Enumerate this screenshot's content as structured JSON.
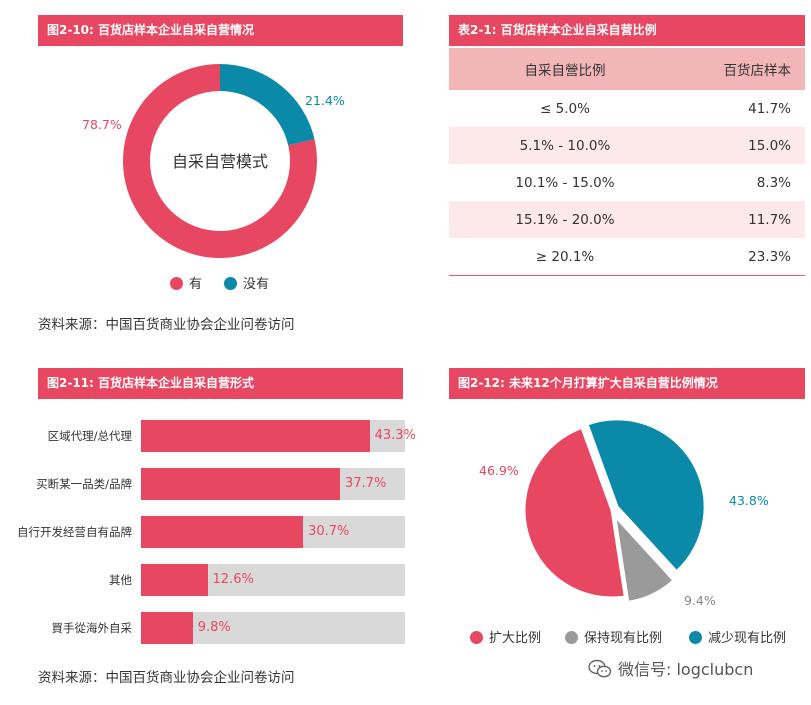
{
  "panel_1": {
    "title": "图2-10: 百货店样本企业自采自营情况",
    "center_label": "自采自营模式",
    "source": "资料来源：中国百货商业协会企业问卷访问"
  },
  "panel_2": {
    "title": "表2-1: 百货店样本企业自采自营比例",
    "columns": [
      "自采自營比例",
      "百货店样本"
    ],
    "rows": [
      [
        "≤ 5.0%",
        "41.7%"
      ],
      [
        "5.1% - 10.0%",
        "15.0%"
      ],
      [
        "10.1% - 15.0%",
        "8.3%"
      ],
      [
        "15.1% - 20.0%",
        "11.7%"
      ],
      [
        "≥ 20.1%",
        "23.3%"
      ]
    ]
  },
  "panel_3": {
    "title": "图2-11: 百货店样本企业自采自营形式",
    "source": "资料来源：中国百货商业协会企业问卷访问"
  },
  "panel_4": {
    "title": "图2-12: 未来12个月打算扩大自采自营比例情况"
  },
  "watermark": {
    "text": "微信号: logclubcn",
    "icon": "wechat-icon"
  },
  "colors": {
    "red": "#e84762",
    "teal": "#0a8aa8",
    "gray": "#9a9a9b",
    "track": "#d9d9d9",
    "table_header": "#f2b6b8",
    "table_alt": "#fde9e9"
  },
  "chart_data": [
    {
      "type": "pie",
      "variant": "donut",
      "categories": [
        "有",
        "没有"
      ],
      "values": [
        78.7,
        21.4
      ],
      "value_labels": [
        "78.7%",
        "21.4%"
      ],
      "colors": [
        "#e84762",
        "#0a8aa8"
      ],
      "legend": "bottom"
    },
    {
      "type": "table",
      "columns": [
        "自采自營比例",
        "百货店样本"
      ],
      "rows": [
        [
          "≤ 5.0%",
          "41.7%"
        ],
        [
          "5.1% - 10.0%",
          "15.0%"
        ],
        [
          "10.1% - 15.0%",
          "8.3%"
        ],
        [
          "15.1% - 20.0%",
          "11.7%"
        ],
        [
          "≥ 20.1%",
          "23.3%"
        ]
      ]
    },
    {
      "type": "bar",
      "orientation": "horizontal",
      "categories": [
        "区域代理/总代理",
        "买断某一品类/品牌",
        "自行开发经营自有品牌",
        "其他",
        "買手從海外自采"
      ],
      "values": [
        43.3,
        37.7,
        30.7,
        12.6,
        9.8
      ],
      "value_labels": [
        "43.3%",
        "37.7%",
        "30.7%",
        "12.6%",
        "9.8%"
      ],
      "xlim": [
        0,
        100
      ],
      "colors": [
        "#e84762",
        "#d9d9d9"
      ]
    },
    {
      "type": "pie",
      "categories": [
        "扩大比例",
        "保持现有比例",
        "减少现有比例"
      ],
      "values": [
        46.9,
        9.4,
        43.8
      ],
      "value_labels": [
        "46.9%",
        "9.4%",
        "43.8%"
      ],
      "colors": [
        "#e84762",
        "#9a9a9b",
        "#0a8aa8"
      ],
      "exploded": true,
      "legend": "bottom"
    }
  ]
}
